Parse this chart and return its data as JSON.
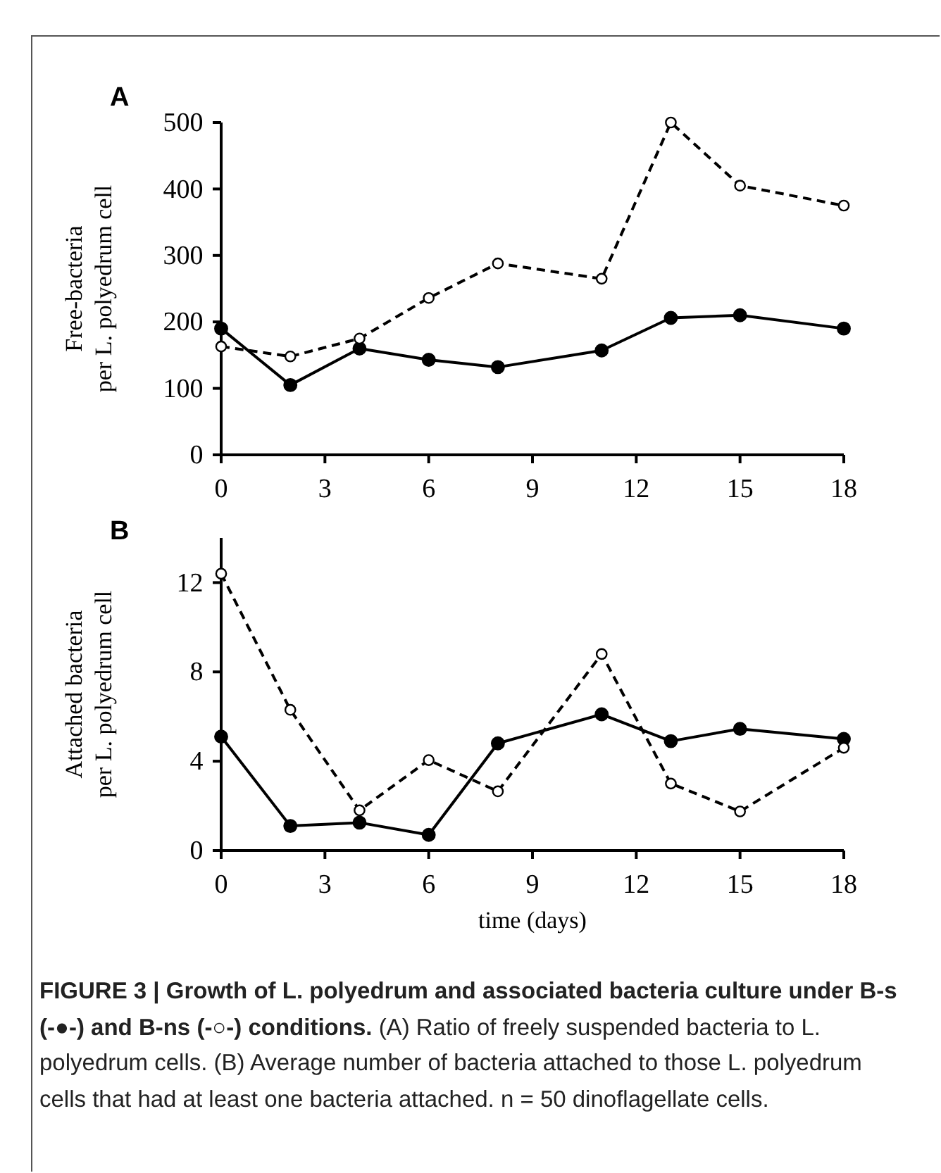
{
  "chart_data": [
    {
      "type": "line",
      "title": "A",
      "ylabel": "Free-bacteria\nper L. polyedrum cell",
      "x": [
        0,
        2,
        4,
        6,
        8,
        11,
        13,
        15,
        18
      ],
      "xlim": [
        0,
        18
      ],
      "xticks": [
        0,
        3,
        6,
        9,
        12,
        15,
        18
      ],
      "ylim": [
        0,
        500
      ],
      "yticks": [
        0,
        100,
        200,
        300,
        400,
        500
      ],
      "marker": "circle",
      "grid": false,
      "series": [
        {
          "color": "#000000",
          "line_style": "solid",
          "values": [
            190,
            105,
            160,
            143,
            132,
            157,
            206,
            210,
            190
          ]
        },
        {
          "color": "#000000",
          "line_style": "dashed",
          "values": [
            163,
            148,
            175,
            236,
            288,
            265,
            500,
            405,
            375
          ]
        }
      ]
    },
    {
      "type": "line",
      "title": "B",
      "xlabel": "time (days)",
      "ylabel": "Attached bacteria\nper L. polyedrum cell",
      "x": [
        0,
        2,
        4,
        6,
        8,
        11,
        13,
        15,
        18
      ],
      "xlim": [
        0,
        18
      ],
      "xticks": [
        0,
        3,
        6,
        9,
        12,
        15,
        18
      ],
      "ylim": [
        0,
        14
      ],
      "yticks": [
        0,
        4,
        8,
        12
      ],
      "marker": "circle",
      "grid": false,
      "series": [
        {
          "color": "#000000",
          "line_style": "solid",
          "values": [
            5.1,
            1.1,
            1.25,
            0.7,
            4.8,
            6.1,
            4.9,
            5.45,
            5.0
          ]
        },
        {
          "color": "#000000",
          "line_style": "dashed",
          "values": [
            12.4,
            6.3,
            1.8,
            4.05,
            2.65,
            8.8,
            3.0,
            1.75,
            4.6
          ]
        }
      ],
      "annotations": [
        "FIGURE 3 | Growth of L. polyedrum and associated bacteria culture under B-s (-●-) and B-ns (-○-) conditions.",
        "(A) Ratio of freely suspended bacteria to L. polyedrum cells. (B) Average number of bacteria attached to those L. polyedrum cells that had at least one bacteria attached. n = 50 dinoflagellate cells."
      ]
    }
  ]
}
